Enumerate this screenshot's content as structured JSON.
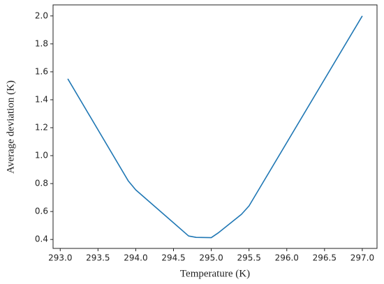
{
  "chart_data": {
    "type": "line",
    "x_label": "Temperature (K)",
    "y_label": "Average deviation (K)",
    "x": [
      293.1,
      293.9,
      294.0,
      294.7,
      294.8,
      295.0,
      295.1,
      295.4,
      295.5,
      297.0
    ],
    "series": [
      {
        "name": "Average deviation",
        "color": "#1f77b4",
        "values": [
          1.55,
          0.82,
          0.755,
          0.425,
          0.415,
          0.413,
          0.45,
          0.58,
          0.64,
          2.0
        ]
      }
    ],
    "xlim": [
      292.905,
      297.195
    ],
    "ylim": [
      0.336,
      2.079
    ],
    "xticks": [
      {
        "value": 293.0,
        "label": "293.0"
      },
      293.5,
      {
        "value": 294.0,
        "label": "294.0"
      },
      294.5,
      {
        "value": 295.0,
        "label": "295.0"
      },
      295.5,
      {
        "value": 296.0,
        "label": "296.0"
      },
      296.5,
      {
        "value": 297.0,
        "label": "297.0"
      }
    ],
    "yticks": [
      0.4,
      0.6,
      0.8,
      {
        "value": 1.0,
        "label": "1.0"
      },
      1.2,
      1.4,
      1.6,
      1.8,
      {
        "value": 2.0,
        "label": "2.0"
      }
    ],
    "grid": false
  }
}
